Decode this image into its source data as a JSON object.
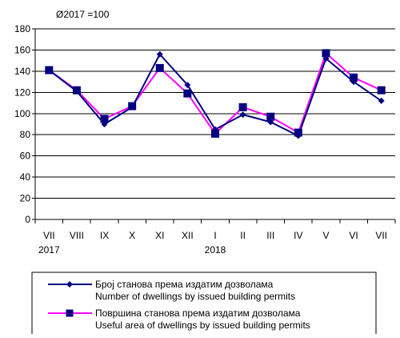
{
  "chart_data": {
    "type": "line",
    "subtitle": "Ø2017 =100",
    "categories": [
      "VII",
      "VIII",
      "IX",
      "X",
      "XI",
      "XII",
      "I",
      "II",
      "III",
      "IV",
      "V",
      "VI",
      "VII"
    ],
    "year_labels": [
      {
        "category_index": 0,
        "label": "2017"
      },
      {
        "category_index": 6,
        "label": "2018"
      }
    ],
    "ylim": [
      0,
      180
    ],
    "yticks": [
      0,
      20,
      40,
      60,
      80,
      100,
      120,
      140,
      160,
      180
    ],
    "grid": true,
    "legend_position": "bottom",
    "series": [
      {
        "name_sr": "Број станова према издатим дозволама",
        "name_en": "Number of dwellings by issued building permits",
        "color": "#000080",
        "marker": "diamond",
        "values": [
          141,
          121,
          90,
          106,
          156,
          127,
          85,
          99,
          92,
          79,
          152,
          130,
          112
        ]
      },
      {
        "name_sr": "Површина станова према издатим дозволама",
        "name_en": "Useful area of dwellings by issued building permits",
        "color": "#ff00ff",
        "marker": "square",
        "values": [
          141,
          122,
          95,
          107,
          143,
          119,
          81,
          106,
          97,
          82,
          157,
          134,
          122
        ]
      }
    ]
  }
}
